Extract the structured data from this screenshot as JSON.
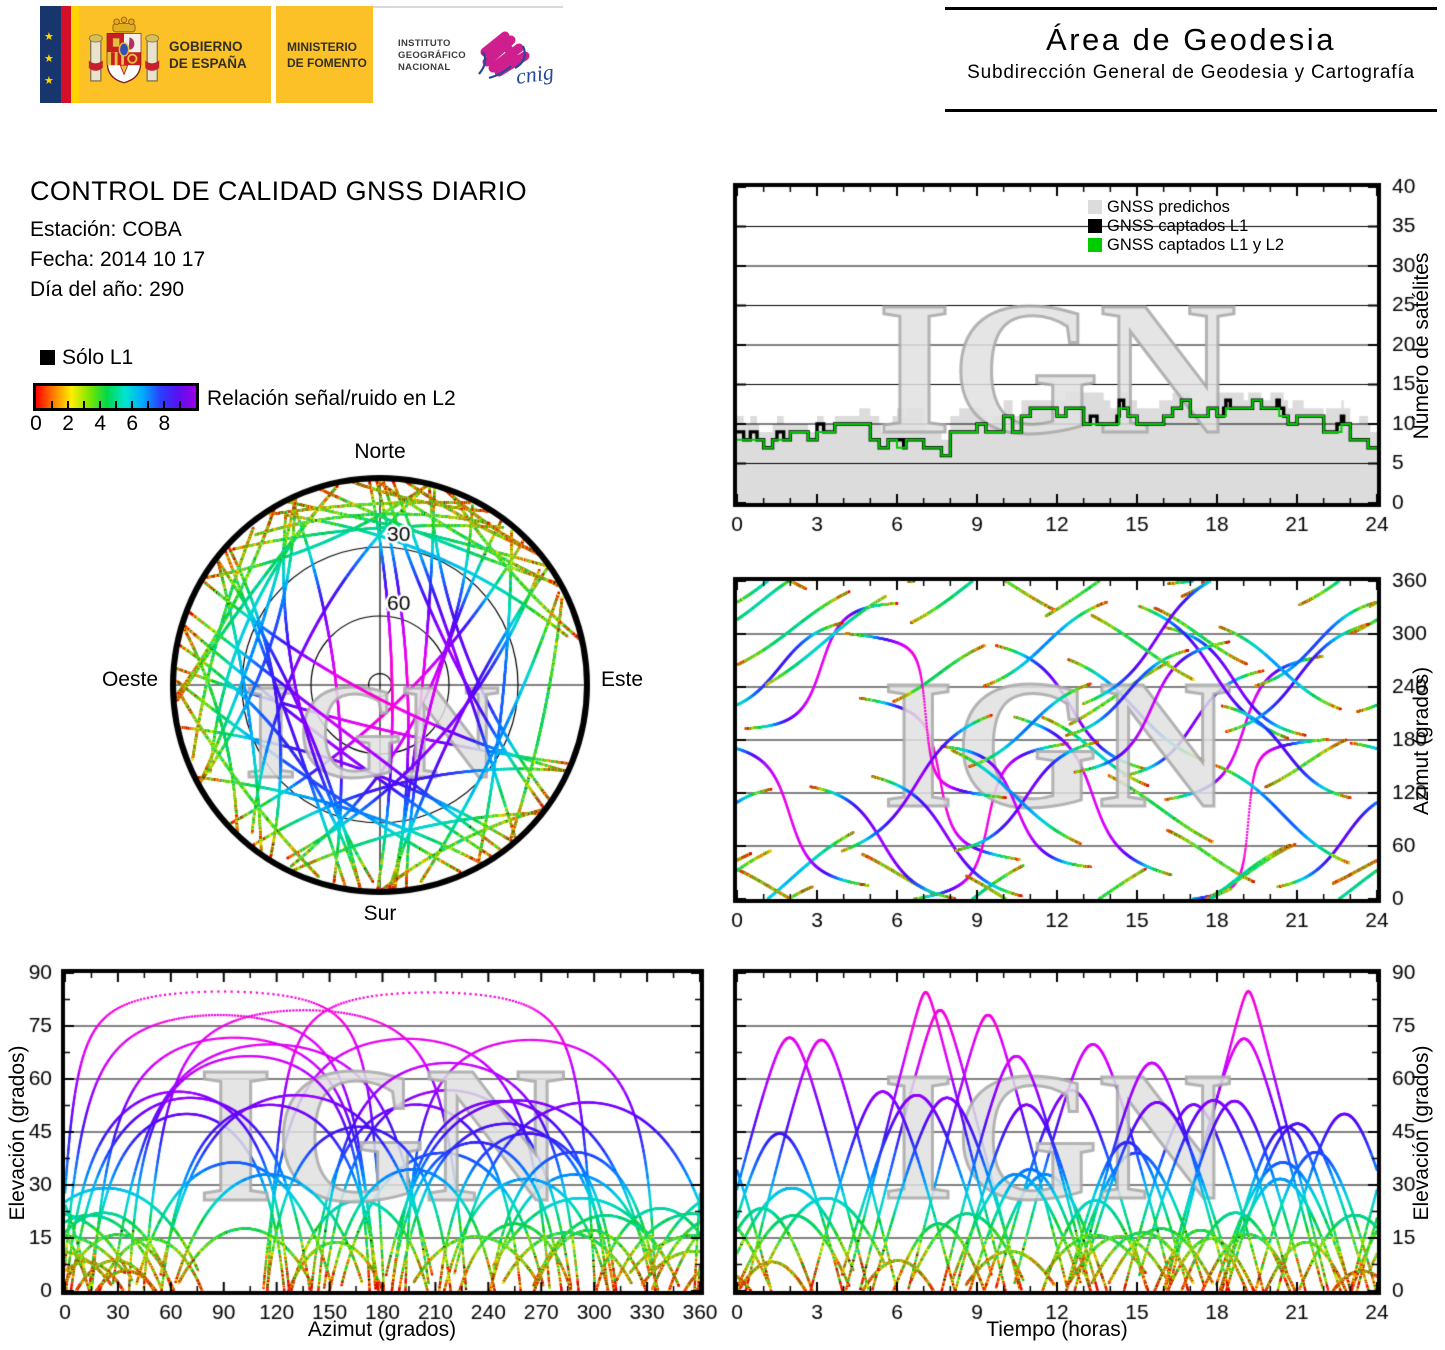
{
  "header_left": {
    "gobierno": [
      "GOBIERNO",
      "DE ESPAÑA"
    ],
    "ministerio": [
      "MINISTERIO",
      "DE FOMENTO"
    ],
    "instituto": [
      "INSTITUTO",
      "GEOGRÁFICO",
      "NACIONAL"
    ],
    "cnig_text": "cnig",
    "colors": {
      "box_yellow": "#fcc126",
      "flag_navy": "#17366e",
      "flag_red": "#d30f2a",
      "flag_yellow": "#ffd400",
      "cnig_magenta": "#cf1f8e",
      "cnig_blue": "#25489b"
    }
  },
  "header_right": {
    "title": "Área de Geodesia",
    "subtitle": "Subdirección General de Geodesia y Cartografía"
  },
  "info": {
    "title": "CONTROL DE CALIDAD GNSS DIARIO",
    "station": "Estación: COBA",
    "date": "Fecha: 2014 10 17",
    "doy": "Día del año: 290"
  },
  "legend": {
    "solo_l1": "Sólo L1",
    "colorbar_label": "Relación señal/ruido en L2",
    "colorbar_ticks": [
      0,
      2,
      4,
      6,
      8
    ],
    "colorbar_minor": [
      1,
      2,
      3,
      4,
      5,
      6,
      7,
      8,
      9
    ],
    "colorbar_max": 9.6,
    "colorbar_css_stops": [
      "#ff0000",
      "#ff7f00",
      "#ffee00",
      "#7ce600",
      "#00d84b",
      "#00e4cf",
      "#00aaff",
      "#2a3fff",
      "#5a10f0",
      "#9c00e8"
    ]
  },
  "watermark": "IGN",
  "chart_data": [
    {
      "id": "sat_count",
      "type": "area",
      "ylabel": "Número de satélites",
      "xlim": [
        0,
        24
      ],
      "ylim": [
        0,
        40
      ],
      "xticks": [
        0,
        3,
        6,
        9,
        12,
        15,
        18,
        21,
        24
      ],
      "yticks": [
        0,
        5,
        10,
        15,
        20,
        25,
        30,
        35,
        40
      ],
      "grid": "horizontal",
      "legend": [
        {
          "label": "GNSS predichos",
          "color": "#dcdcdc"
        },
        {
          "label": "GNSS captados L1",
          "color": "#000000"
        },
        {
          "label": "GNSS captados L1 y L2",
          "color": "#00cc00"
        }
      ],
      "series": {
        "captured_l1l2_by_hour": [
          9,
          8,
          9,
          9,
          10,
          8,
          8,
          7,
          9,
          10,
          10,
          12,
          11,
          10,
          11,
          10,
          12,
          12,
          11,
          12,
          11,
          11,
          9,
          8,
          9
        ],
        "predicted_extra_by_hour": [
          1,
          2,
          1,
          1,
          1,
          2,
          3,
          2,
          2,
          1,
          2,
          1,
          2,
          3,
          2,
          2,
          1,
          1,
          2,
          1,
          2,
          1,
          2,
          2,
          1
        ]
      }
    },
    {
      "id": "azimuth_time",
      "type": "scatter",
      "ylabel": "Azimut (grados)",
      "xlim": [
        0,
        24
      ],
      "ylim": [
        0,
        360
      ],
      "xticks": [
        0,
        3,
        6,
        9,
        12,
        15,
        18,
        21,
        24
      ],
      "yticks": [
        0,
        60,
        120,
        180,
        240,
        300,
        360
      ],
      "grid": "horizontal",
      "note": "Satellite azimuth vs time tracks, colored by L2 signal/noise ratio"
    },
    {
      "id": "elev_azimuth",
      "type": "scatter",
      "xlabel": "Azimut (grados)",
      "ylabel": "Elevación (grados)",
      "xlim": [
        0,
        360
      ],
      "ylim": [
        0,
        90
      ],
      "xticks": [
        0,
        30,
        60,
        90,
        120,
        150,
        180,
        210,
        240,
        270,
        300,
        330,
        360
      ],
      "yticks": [
        0,
        15,
        30,
        45,
        60,
        75,
        90
      ],
      "grid": "horizontal",
      "note": "Satellite elevation vs azimuth arcs, colored by L2 signal/noise ratio"
    },
    {
      "id": "elev_time",
      "type": "scatter",
      "xlabel": "Tiempo (horas)",
      "ylabel": "Elevación (grados)",
      "xlim": [
        0,
        24
      ],
      "ylim": [
        0,
        90
      ],
      "xticks": [
        0,
        3,
        6,
        9,
        12,
        15,
        18,
        21,
        24
      ],
      "yticks": [
        0,
        15,
        30,
        45,
        60,
        75,
        90
      ],
      "grid": "horizontal",
      "note": "Satellite elevation vs time peaks, colored by L2 signal/noise ratio"
    },
    {
      "id": "skyplot",
      "type": "polar",
      "ring_labels": [
        "30",
        "60"
      ],
      "rings_deg": [
        30,
        60
      ],
      "compass": {
        "north": "Norte",
        "south": "Sur",
        "east": "Este",
        "west": "Oeste"
      },
      "note": "Sky plot of satellite tracks over station COBA, colored by L2 signal/noise ratio; empty sector toward north"
    }
  ],
  "snr_colormap": [
    [
      0.0,
      "#e10000"
    ],
    [
      0.07,
      "#ff3c00"
    ],
    [
      0.14,
      "#ff9000"
    ],
    [
      0.2,
      "#ffe000"
    ],
    [
      0.26,
      "#c8f000"
    ],
    [
      0.33,
      "#62dc00"
    ],
    [
      0.4,
      "#00c818"
    ],
    [
      0.47,
      "#00d275"
    ],
    [
      0.54,
      "#00dcc8"
    ],
    [
      0.6,
      "#00c0f0"
    ],
    [
      0.66,
      "#0080ff"
    ],
    [
      0.72,
      "#2446ff"
    ],
    [
      0.78,
      "#3c14f0"
    ],
    [
      0.84,
      "#7000ff"
    ],
    [
      0.9,
      "#aa00ff"
    ],
    [
      0.95,
      "#e100ff"
    ],
    [
      1.0,
      "#ff00c8"
    ]
  ],
  "model": {
    "seed": 290,
    "n_passes": 52,
    "snr_max": 9.6,
    "north_gap": {
      "azimuth_halfwidth_deg": 55,
      "max_peak_elevation_deg": 32
    }
  }
}
